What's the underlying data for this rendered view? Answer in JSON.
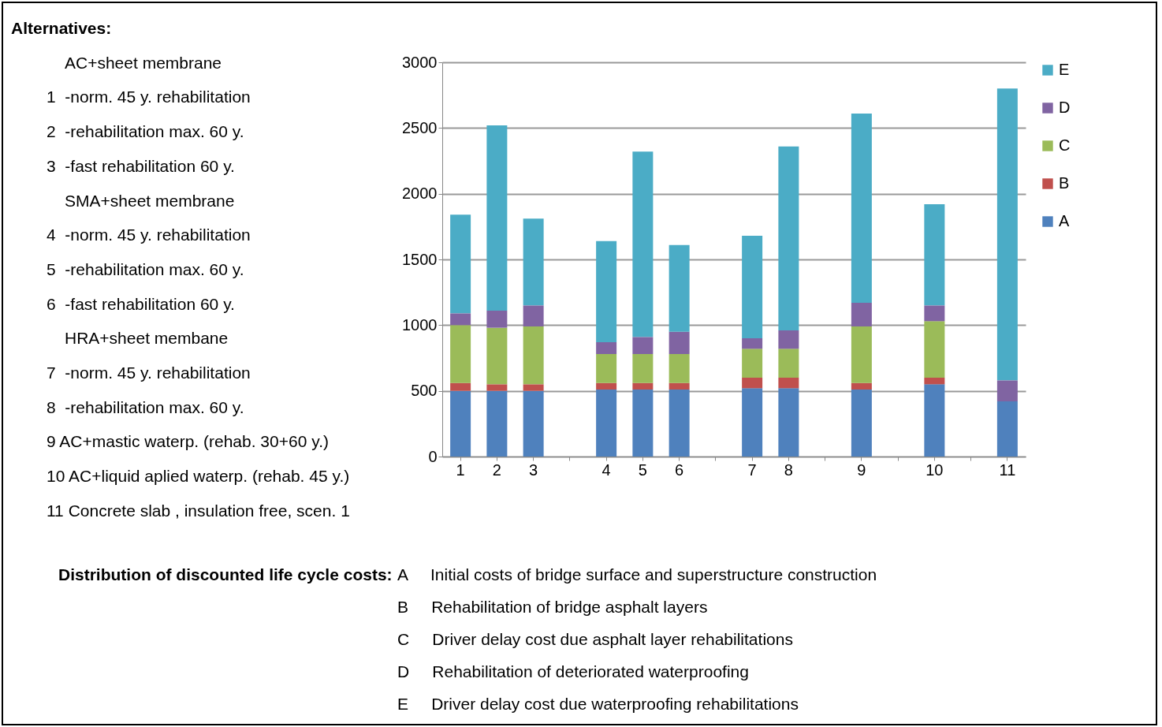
{
  "chart_data": {
    "type": "bar",
    "stacked": true,
    "categories": [
      "1",
      "2",
      "3",
      null,
      "4",
      "5",
      "6",
      null,
      "7",
      "8",
      null,
      "9",
      null,
      "10",
      null,
      "11"
    ],
    "series": [
      {
        "name": "A",
        "color": "#4f81bd",
        "values": [
          500,
          500,
          500,
          null,
          510,
          510,
          510,
          null,
          520,
          520,
          null,
          510,
          null,
          550,
          null,
          420
        ]
      },
      {
        "name": "B",
        "color": "#c0504d",
        "values": [
          60,
          50,
          50,
          null,
          50,
          50,
          50,
          null,
          80,
          80,
          null,
          50,
          null,
          50,
          null,
          0
        ]
      },
      {
        "name": "C",
        "color": "#9bbb59",
        "values": [
          440,
          430,
          440,
          null,
          220,
          220,
          220,
          null,
          220,
          220,
          null,
          430,
          null,
          430,
          null,
          0
        ]
      },
      {
        "name": "D",
        "color": "#8064a2",
        "values": [
          90,
          130,
          160,
          null,
          90,
          130,
          170,
          null,
          80,
          140,
          null,
          180,
          null,
          120,
          null,
          160
        ]
      },
      {
        "name": "E",
        "color": "#4bacc6",
        "values": [
          750,
          1410,
          660,
          null,
          770,
          1410,
          660,
          null,
          780,
          1400,
          null,
          1440,
          null,
          770,
          null,
          2220
        ]
      }
    ],
    "ylim": [
      0,
      3000
    ],
    "yticks": [
      0,
      500,
      1000,
      1500,
      2000,
      2500,
      3000
    ],
    "grid": "y",
    "legend": "right",
    "annotations": [
      "Alternatives:",
      "AC+sheet membrane",
      "1  -norm. 45 y. rehabilitation",
      "2  -rehabilitation max. 60 y.",
      "3  -fast rehabilitation 60 y.",
      "SMA+sheet membrane",
      "4  -norm. 45 y. rehabilitation",
      "5  -rehabilitation max. 60 y.",
      "6  -fast rehabilitation 60 y.",
      "HRA+sheet membane",
      "7  -norm. 45 y. rehabilitation",
      "8  -rehabilitation max. 60 y.",
      "9 AC+mastic waterp. (rehab. 30+60 y.)",
      "10 AC+liquid aplied waterp. (rehab. 45 y.)",
      "11 Concrete slab , insulation free, scen. 1",
      "Distribution of discounted life cycle costs:",
      "A     Initial costs of bridge surface and superstructure construction",
      "B     Rehabilitation of bridge asphalt layers",
      "C     Driver delay cost due asphalt layer rehabilitations",
      "D     Rehabilitation of deteriorated waterproofing",
      "E     Driver delay cost due waterproofing rehabilitations"
    ]
  }
}
